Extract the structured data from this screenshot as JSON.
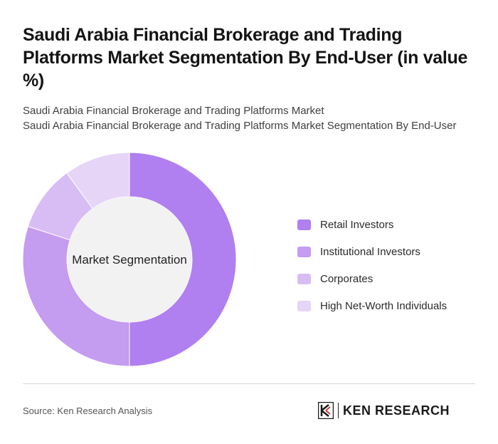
{
  "header": {
    "title": "Saudi Arabia Financial Brokerage and Trading Platforms Market Segmentation By End-User (in value %)",
    "subtitle_line1": "Saudi Arabia Financial Brokerage and Trading Platforms Market",
    "subtitle_line2": "Saudi Arabia Financial Brokerage and Trading Platforms Market Segmentation By End-User"
  },
  "chart_data": {
    "type": "pie",
    "donut": true,
    "center_label": "Market Segmentation",
    "categories": [
      "Retail Investors",
      "Institutional Investors",
      "Corporates",
      "High Net-Worth Individuals"
    ],
    "values": [
      50,
      30,
      10,
      10
    ],
    "colors": [
      "#b07ff0",
      "#c49cf0",
      "#d8bdf5",
      "#e6d5f7"
    ],
    "legend_position": "right"
  },
  "footer": {
    "source": "Source: Ken Research Analysis",
    "logo_text": "KEN RESEARCH",
    "logo_icon": "ken-research-logo-icon"
  }
}
